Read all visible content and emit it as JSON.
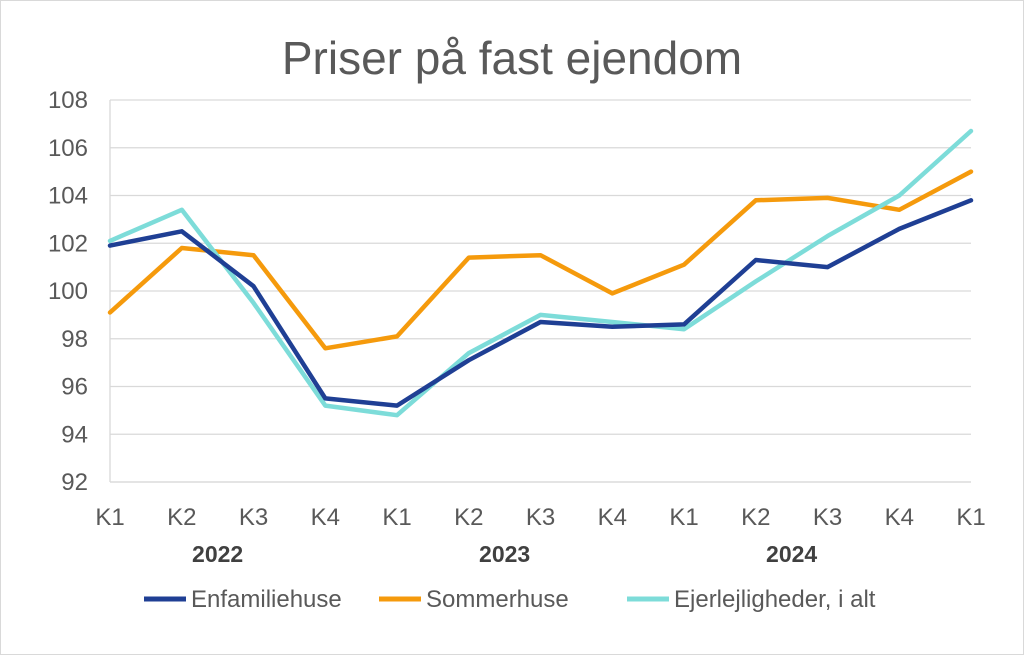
{
  "chart_data": {
    "type": "line",
    "title": "Priser på fast ejendom",
    "xlabel": "",
    "ylabel": "",
    "ylim": [
      92,
      108
    ],
    "yticks": [
      92,
      94,
      96,
      98,
      100,
      102,
      104,
      106,
      108
    ],
    "grid": true,
    "legend_position": "bottom",
    "categories": [
      "K1",
      "K2",
      "K3",
      "K4",
      "K1",
      "K2",
      "K3",
      "K4",
      "K1",
      "K2",
      "K3",
      "K4",
      "K1"
    ],
    "year_labels": [
      {
        "label": "2022",
        "center_index": 1.5
      },
      {
        "label": "2023",
        "center_index": 5.5
      },
      {
        "label": "2024",
        "center_index": 9.5
      }
    ],
    "series": [
      {
        "name": "Enfamiliehuse",
        "color": "#1f3f94",
        "values": [
          101.9,
          102.5,
          100.2,
          95.5,
          95.2,
          97.1,
          98.7,
          98.5,
          98.6,
          101.3,
          101.0,
          102.6,
          103.8
        ]
      },
      {
        "name": "Sommerhuse",
        "color": "#f59a0c",
        "values": [
          99.1,
          101.8,
          101.5,
          97.6,
          98.1,
          101.4,
          101.5,
          99.9,
          101.1,
          103.8,
          103.9,
          103.4,
          105.0
        ]
      },
      {
        "name": "Ejerlejligheder, i alt",
        "color": "#7ddcd9",
        "values": [
          102.1,
          103.4,
          99.5,
          95.2,
          94.8,
          97.4,
          99.0,
          98.7,
          98.4,
          100.4,
          102.3,
          104.0,
          106.7
        ]
      }
    ]
  }
}
